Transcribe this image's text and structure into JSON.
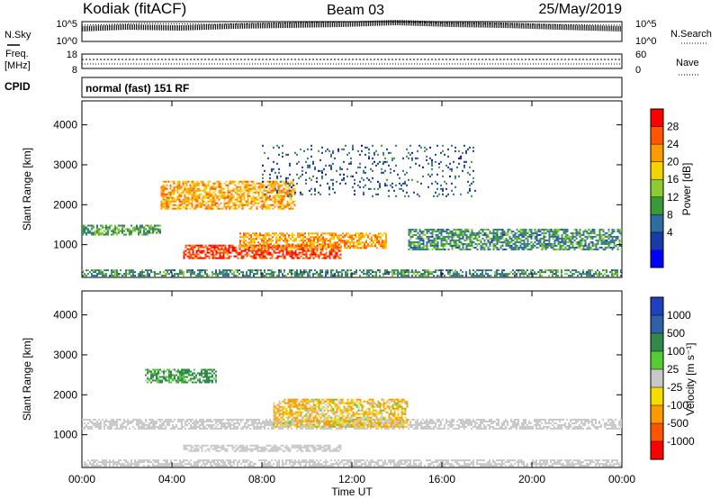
{
  "header": {
    "station": "Kodiak (fitACF)",
    "beam": "Beam 03",
    "date": "25/May/2019"
  },
  "top_panels": {
    "nsky_label": "N.Sky",
    "nsky_ticks": [
      "10^5",
      "10^0"
    ],
    "nsearch_label": "N.Search",
    "nsearch_ticks": [
      "10^5",
      "10^0"
    ],
    "freq_label": "Freq.",
    "freq_unit": "[MHz]",
    "freq_ticks": [
      "18",
      "8"
    ],
    "nave_label": "Nave",
    "nave_ticks": [
      "60",
      "0"
    ],
    "cpid_label": "CPID",
    "cpid_value": "normal (fast) 151 RF"
  },
  "colorbars": {
    "power": {
      "label": "Power [dB]",
      "ticks": [
        "28",
        "24",
        "20",
        "16",
        "12",
        "8",
        "4"
      ],
      "colors": [
        "#ff0000",
        "#ff5500",
        "#ff9900",
        "#f2d200",
        "#8ccc33",
        "#3a9a3a",
        "#2e6da0",
        "#1a3aa8",
        "#0000ff"
      ]
    },
    "velocity": {
      "label": "Velocity [m s⁻¹]",
      "ticks": [
        "1000",
        "500",
        "100",
        "25",
        "-25",
        "-100",
        "-500",
        "-1000"
      ],
      "colors": [
        "#2040c0",
        "#3060a8",
        "#2f8a4a",
        "#55cc33",
        "#c8c8c8",
        "#f5dd00",
        "#ff9900",
        "#ff5500",
        "#ff0000"
      ]
    }
  },
  "chart_data": [
    {
      "type": "heatmap",
      "title": "Power",
      "xlabel": "Time UT",
      "ylabel": "Slant Range [km]",
      "x_ticks": [
        "00:00",
        "04:00",
        "08:00",
        "12:00",
        "16:00",
        "20:00",
        "00:00"
      ],
      "y_ticks": [
        "1000",
        "2000",
        "3000",
        "4000"
      ],
      "xlim": [
        0,
        24
      ],
      "ylim": [
        180,
        4600
      ],
      "regions": [
        {
          "name": "near-range clutter",
          "x": [
            0,
            24
          ],
          "y": [
            200,
            380
          ],
          "value_db": 10
        },
        {
          "name": "daytime E/F band",
          "x": [
            4.5,
            11.5
          ],
          "y": [
            650,
            1000
          ],
          "value_db": 28
        },
        {
          "name": "descending F echo",
          "x": [
            7.0,
            13.5
          ],
          "y": [
            900,
            1300
          ],
          "value_db": 22
        },
        {
          "name": "morning F band",
          "x": [
            3.5,
            9.5
          ],
          "y": [
            1900,
            2600
          ],
          "value_db": 22
        },
        {
          "name": "pre-dawn band",
          "x": [
            0,
            3.5
          ],
          "y": [
            1250,
            1500
          ],
          "value_db": 12
        },
        {
          "name": "afternoon F band",
          "x": [
            14.5,
            24
          ],
          "y": [
            900,
            1400
          ],
          "value_db": 10
        },
        {
          "name": "scattered high range",
          "x": [
            8,
            17.5
          ],
          "y": [
            2200,
            3500
          ],
          "value_db": 6
        }
      ]
    },
    {
      "type": "heatmap",
      "title": "Velocity",
      "xlabel": "Time UT",
      "ylabel": "Slant Range [km]",
      "x_ticks": [
        "00:00",
        "04:00",
        "08:00",
        "12:00",
        "16:00",
        "20:00",
        "00:00"
      ],
      "y_ticks": [
        "1000",
        "2000",
        "3000",
        "4000"
      ],
      "xlim": [
        0,
        24
      ],
      "ylim": [
        180,
        4600
      ],
      "regions": [
        {
          "name": "ground scatter band",
          "x": [
            0,
            24
          ],
          "y": [
            1150,
            1400
          ],
          "value_ms": 0
        },
        {
          "name": "daytime ground scatter",
          "x": [
            4.5,
            11.5
          ],
          "y": [
            600,
            750
          ],
          "value_ms": 0
        },
        {
          "name": "positive velocity patch",
          "x": [
            2.8,
            6.0
          ],
          "y": [
            2300,
            2650
          ],
          "value_ms": 150
        },
        {
          "name": "mixed F echo",
          "x": [
            8.5,
            14.5
          ],
          "y": [
            1200,
            1900
          ],
          "value_ms": -100
        },
        {
          "name": "near-range clutter",
          "x": [
            0,
            24
          ],
          "y": [
            200,
            380
          ],
          "value_ms": 0
        }
      ]
    }
  ]
}
